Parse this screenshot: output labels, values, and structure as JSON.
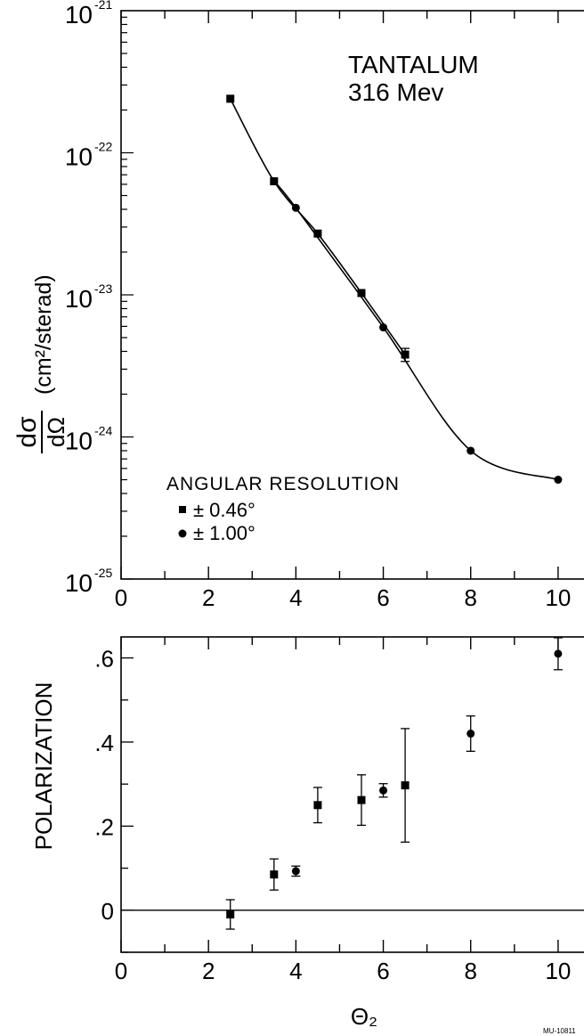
{
  "chart_data": [
    {
      "type": "scatter",
      "log_y": true,
      "xlim": [
        0,
        11
      ],
      "ylim": [
        1e-25,
        1e-21
      ],
      "xticks": [
        "0",
        "2",
        "4",
        "6",
        "8",
        "10"
      ],
      "yticks": [
        {
          "value": 1e-21,
          "base": "10",
          "exp": "-21"
        },
        {
          "value": 1e-22,
          "base": "10",
          "exp": "-22"
        },
        {
          "value": 1e-23,
          "base": "10",
          "exp": "-23"
        },
        {
          "value": 1e-24,
          "base": "10",
          "exp": "-24"
        },
        {
          "value": 1e-25,
          "base": "10",
          "exp": "-25"
        }
      ],
      "ylabel": {
        "numerator": "dσ",
        "denominator": "dΩ",
        "unit": "(cm²/sterad)"
      },
      "annotation": [
        "TANTALUM",
        "316 Mev"
      ],
      "legend_title": "ANGULAR RESOLUTION",
      "legend_placement": "lower-left",
      "series": [
        {
          "name": "± 0.46°",
          "marker": "square",
          "x": [
            2.5,
            3.5,
            4.5,
            5.5,
            6.5
          ],
          "y": [
            2.4e-22,
            6.3e-23,
            2.7e-23,
            1.03e-23,
            3.8e-24
          ],
          "err": [
            null,
            null,
            null,
            null,
            4e-25
          ]
        },
        {
          "name": "± 1.00°",
          "marker": "circle",
          "x": [
            4.0,
            6.0,
            8.0,
            10.0
          ],
          "y": [
            4.1e-23,
            5.9e-24,
            8e-25,
            5e-25
          ]
        }
      ]
    },
    {
      "type": "scatter",
      "xlim": [
        0,
        11
      ],
      "ylim": [
        -0.1,
        0.65
      ],
      "xticks": [
        "0",
        "2",
        "4",
        "6",
        "8",
        "10"
      ],
      "yticks": [
        {
          "value": 0,
          "label": "0"
        },
        {
          "value": 0.2,
          "label": ".2"
        },
        {
          "value": 0.4,
          "label": ".4"
        },
        {
          "value": 0.6,
          "label": ".6"
        }
      ],
      "xlabel": "Θ₂",
      "ylabel": "POLARIZATION",
      "zero_line": true,
      "series": [
        {
          "name": "± 0.46°",
          "marker": "square",
          "x": [
            2.5,
            3.5,
            4.5,
            5.5,
            6.5
          ],
          "y": [
            -0.01,
            0.085,
            0.25,
            0.262,
            0.297
          ],
          "err": [
            0.035,
            0.037,
            0.042,
            0.06,
            0.135
          ]
        },
        {
          "name": "± 1.00°",
          "marker": "circle",
          "x": [
            4.0,
            6.0,
            8.0,
            10.0
          ],
          "y": [
            0.093,
            0.285,
            0.42,
            0.61
          ],
          "err": [
            0.012,
            0.016,
            0.042,
            0.038
          ]
        }
      ]
    }
  ],
  "footer_code": "MU-10811"
}
